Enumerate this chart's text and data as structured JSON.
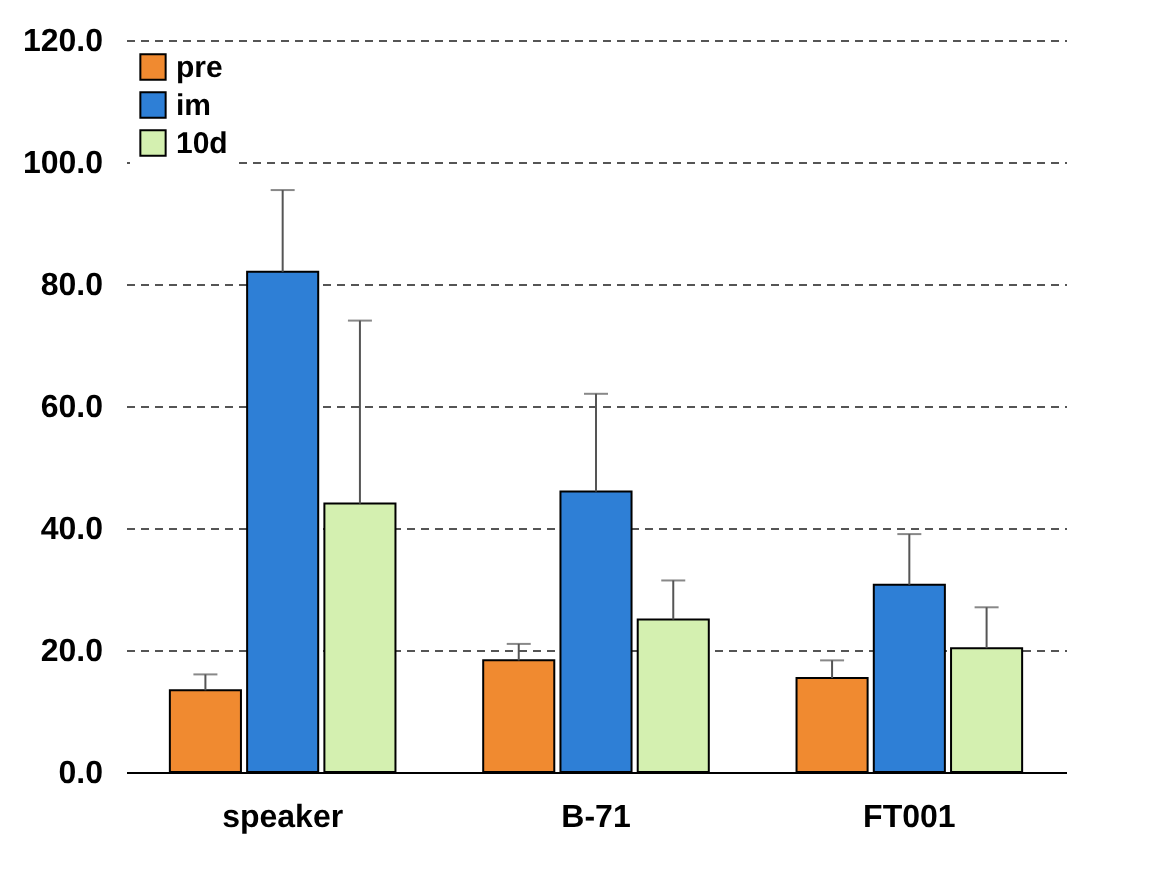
{
  "chart_data": {
    "type": "bar",
    "categories": [
      "speaker",
      "B-71",
      "FT001"
    ],
    "series": [
      {
        "name": "pre",
        "color": "#f08a30",
        "values": [
          13.4,
          18.3,
          15.4
        ],
        "errors": [
          [
            13.4,
            16
          ],
          [
            18.3,
            21
          ],
          [
            15.4,
            18.3
          ]
        ]
      },
      {
        "name": "im",
        "color": "#2e7fd6",
        "values": [
          82,
          46,
          30.7
        ],
        "errors": [
          [
            82,
            95.4
          ],
          [
            46,
            62
          ],
          [
            30.7,
            39
          ]
        ]
      },
      {
        "name": "10d",
        "color": "#d4f0b0",
        "values": [
          44,
          25,
          20.3
        ],
        "errors": [
          [
            44,
            74
          ],
          [
            25,
            31.4
          ],
          [
            20.3,
            27
          ]
        ]
      }
    ],
    "ylim": [
      0,
      120
    ],
    "yticks": [
      {
        "value": 0,
        "label": "0.0"
      },
      {
        "value": 20,
        "label": "20.0"
      },
      {
        "value": 40,
        "label": "40.0"
      },
      {
        "value": 60,
        "label": "60.0"
      },
      {
        "value": 80,
        "label": "80.0"
      },
      {
        "value": 100,
        "label": "100.0"
      },
      {
        "value": 120,
        "label": "120.0"
      }
    ],
    "grid": "y",
    "legend": "top left"
  }
}
